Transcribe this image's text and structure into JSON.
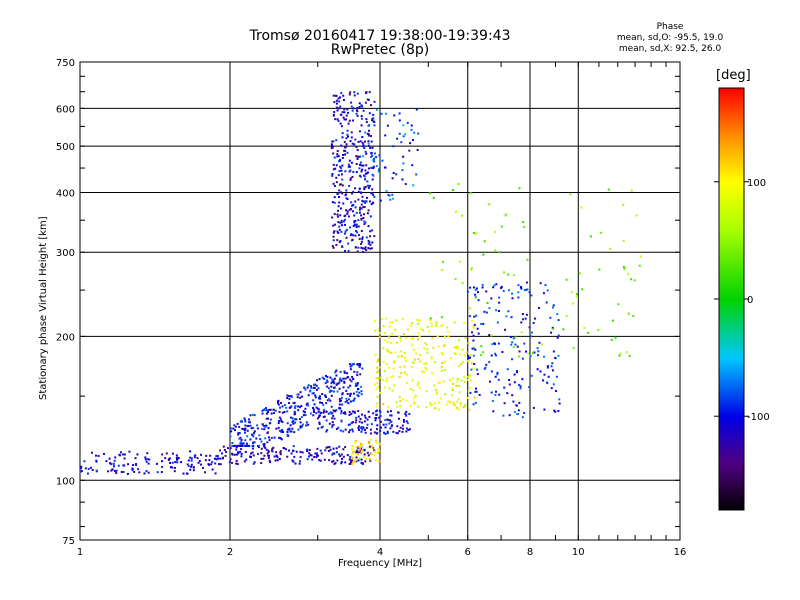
{
  "chart_data": {
    "type": "scatter",
    "title": "Tromsø 20160417 19:38:00-19:39:43",
    "subtitle": "RwPretec (8p)",
    "xlabel": "Frequency [MHz]",
    "ylabel": "Stationary phase Virtual Height [km]",
    "x_scale": "log",
    "y_scale": "log",
    "xlim": [
      1,
      16
    ],
    "ylim": [
      75,
      750
    ],
    "x_ticks": [
      1,
      2,
      4,
      6,
      8,
      10,
      16
    ],
    "y_ticks": [
      75,
      100,
      200,
      300,
      400,
      500,
      600,
      750
    ],
    "grid": true,
    "phase_header": "Phase",
    "phase_stats": [
      "mean, sd,O: -95.5, 19.0",
      "mean, sd,X:  92.5, 26.0"
    ],
    "colorbar": {
      "label": "[deg]",
      "range": [
        -180,
        180
      ],
      "ticks": [
        -100,
        0,
        100
      ]
    },
    "clusters": [
      {
        "desc": "low-frequency trace",
        "x_range": [
          1.0,
          1.9
        ],
        "y_range": [
          103,
          115
        ],
        "phase": -110,
        "count": 140
      },
      {
        "desc": "lower band",
        "x_range": [
          1.9,
          3.9
        ],
        "y_range": [
          108,
          118
        ],
        "phase": -115,
        "count": 180
      },
      {
        "desc": "rising band",
        "x_range": [
          2.0,
          3.7
        ],
        "y_range": [
          118,
          175
        ],
        "phase": -100,
        "count": 420
      },
      {
        "desc": "mid band",
        "x_range": [
          3.0,
          4.6
        ],
        "y_range": [
          125,
          140
        ],
        "phase": -105,
        "count": 150
      },
      {
        "desc": "F-region column",
        "x_range": [
          3.2,
          3.9
        ],
        "y_range": [
          300,
          650
        ],
        "phase": -110,
        "count": 380
      },
      {
        "desc": "upper cusp",
        "x_range": [
          3.7,
          4.8
        ],
        "y_range": [
          380,
          600
        ],
        "phase": -80,
        "count": 70
      },
      {
        "desc": "X-mode patch",
        "x_range": [
          3.9,
          6.2
        ],
        "y_range": [
          140,
          220
        ],
        "phase": 90,
        "count": 260
      },
      {
        "desc": "yellow blob",
        "x_range": [
          3.5,
          4.0
        ],
        "y_range": [
          108,
          122
        ],
        "phase": 110,
        "count": 50
      },
      {
        "desc": "high-frequency scatter",
        "x_range": [
          6.0,
          9.2
        ],
        "y_range": [
          135,
          260
        ],
        "phase": -95,
        "count": 200
      },
      {
        "desc": "sparse high scatter",
        "x_range": [
          5.0,
          13.5
        ],
        "y_range": [
          180,
          420
        ],
        "phase": 40,
        "count": 90
      }
    ]
  }
}
